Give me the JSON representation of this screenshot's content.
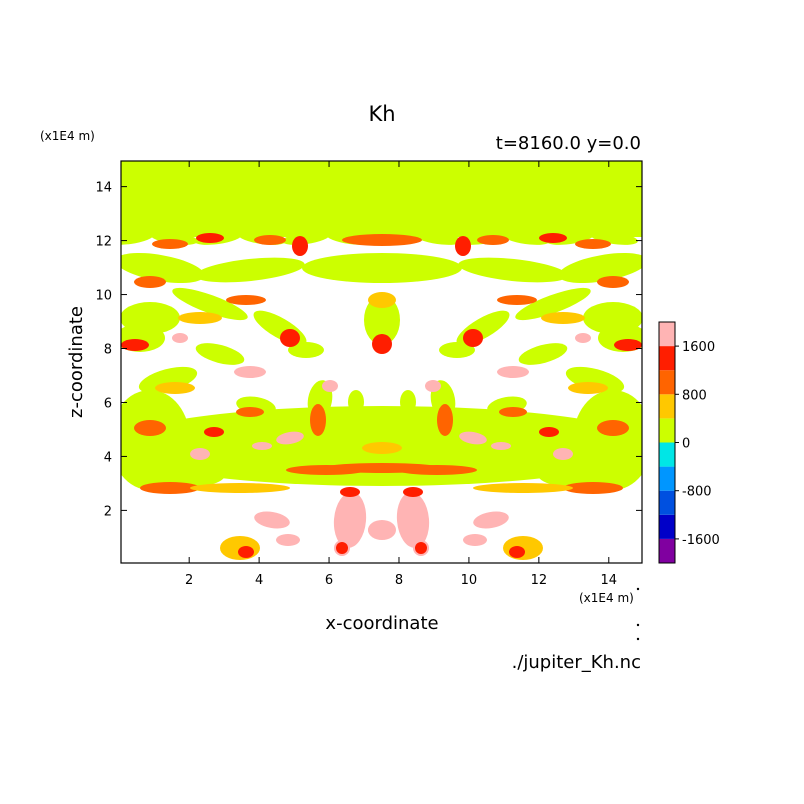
{
  "chart_data": {
    "type": "heatmap",
    "title": "Kh",
    "subtitle": "t=8160.0 y=0.0",
    "xlabel": "x-coordinate",
    "ylabel": "z-coordinate",
    "x_unit": "(x1E4 m)",
    "z_unit": "(x1E4 m)",
    "xlim": [
      0.05,
      14.95
    ],
    "ylim": [
      0.05,
      14.95
    ],
    "x_ticks": [
      2,
      4,
      6,
      8,
      10,
      12,
      14
    ],
    "y_ticks": [
      2,
      4,
      6,
      8,
      10,
      12,
      14
    ],
    "source_file": "./jupiter_Kh.nc",
    "colorbar": {
      "tick_labels": [
        "1600",
        "800",
        "0",
        "-800",
        "-1600"
      ],
      "tick_values": [
        1600,
        800,
        0,
        -800,
        -1600
      ],
      "min": -2000,
      "max": 2000,
      "levels": [
        {
          "from": -2000,
          "to": -1600,
          "color": "#8000a0"
        },
        {
          "from": -1600,
          "to": -1200,
          "color": "#0000c8"
        },
        {
          "from": -1200,
          "to": -800,
          "color": "#0050e0"
        },
        {
          "from": -800,
          "to": -400,
          "color": "#0096ff"
        },
        {
          "from": -400,
          "to": 0,
          "color": "#00e6e6"
        },
        {
          "from": 0,
          "to": 400,
          "color": "#ccff00"
        },
        {
          "from": 400,
          "to": 800,
          "color": "#ffc800"
        },
        {
          "from": 800,
          "to": 1200,
          "color": "#ff6400"
        },
        {
          "from": 1200,
          "to": 1600,
          "color": "#ff1e00"
        },
        {
          "from": 1600,
          "to": 2000,
          "color": "#ffb4b4"
        }
      ]
    }
  }
}
